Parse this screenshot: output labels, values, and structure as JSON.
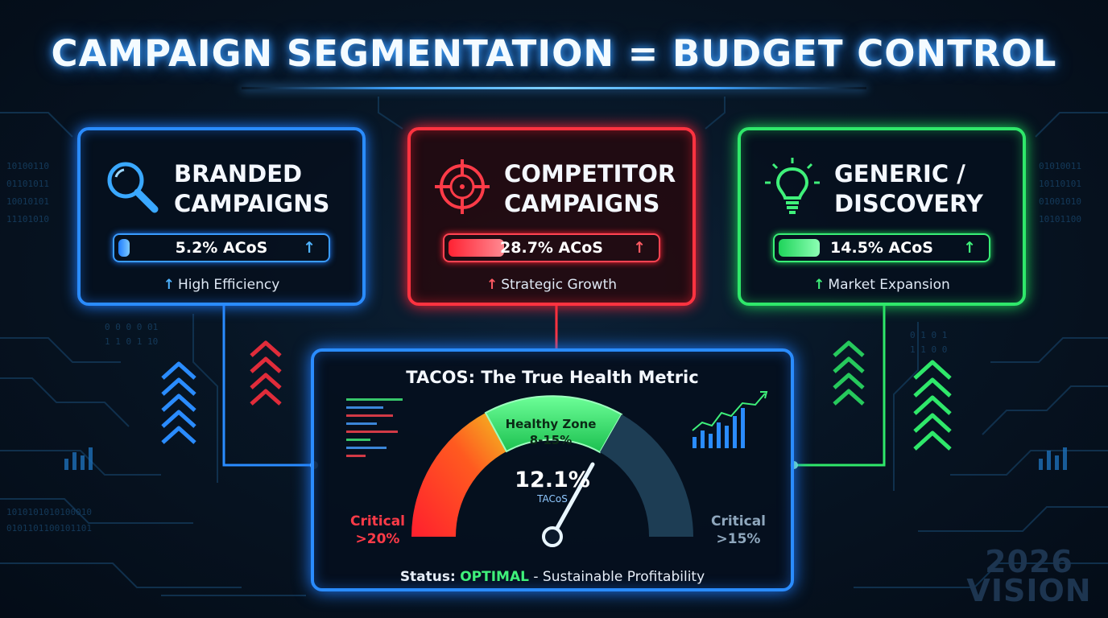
{
  "title": "CAMPAIGN SEGMENTATION = BUDGET CONTROL",
  "colors": {
    "blue": "#2a8cff",
    "red": "#ff3340",
    "green": "#2fe86a",
    "background": "#071524"
  },
  "cards": [
    {
      "name_line1": "BRANDED",
      "name_line2": "CAMPAIGNS",
      "icon": "magnifier-icon",
      "acos": "5.2% ACoS",
      "arrow": "↑",
      "fill_fraction": 0.05,
      "subtitle": "High Efficiency"
    },
    {
      "name_line1": "COMPETITOR",
      "name_line2": "CAMPAIGNS",
      "icon": "crosshair-icon",
      "acos": "28.7% ACoS",
      "arrow": "↑",
      "fill_fraction": 0.27,
      "subtitle": "Strategic Growth"
    },
    {
      "name_line1": "GENERIC /",
      "name_line2": "DISCOVERY",
      "icon": "lightbulb-icon",
      "acos": "14.5% ACoS",
      "arrow": "↑",
      "fill_fraction": 0.2,
      "subtitle": "Market Expansion"
    }
  ],
  "tacos": {
    "title": "TACOS: The True Health Metric",
    "healthy_label": "Healthy Zone",
    "healthy_range": "8-15%",
    "value": "12.1%",
    "unit": "TACoS",
    "left_critical_label": "Critical",
    "left_critical_value": ">20%",
    "right_critical_label": "Critical",
    "right_critical_value": ">15%",
    "status_prefix": "Status:",
    "status_value": "OPTIMAL",
    "status_suffix": "- Sustainable Profitability"
  },
  "badge": {
    "line1": "2026",
    "line2": "VISION"
  }
}
